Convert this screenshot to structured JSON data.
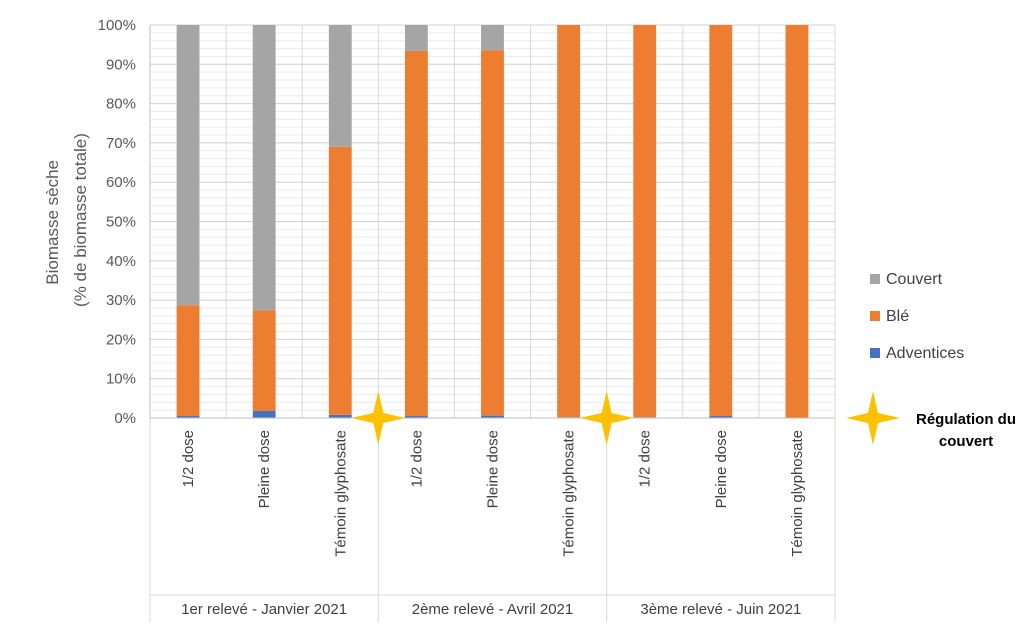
{
  "chart_data": {
    "type": "bar",
    "stacked": true,
    "ylabel": [
      "Biomasse sèche",
      "(% de biomasse totale)"
    ],
    "ylim": [
      0,
      100
    ],
    "y_ticks": [
      "0%",
      "10%",
      "20%",
      "30%",
      "40%",
      "50%",
      "60%",
      "70%",
      "80%",
      "90%",
      "100%"
    ],
    "grid": true,
    "groups": [
      {
        "label": "1er relevé - Janvier 2021",
        "categories": [
          "1/2 dose",
          "Pleine dose",
          "Témoin glyphosate"
        ]
      },
      {
        "label": "2ème relevé - Avril 2021",
        "categories": [
          "1/2 dose",
          "Pleine dose",
          "Témoin glyphosate"
        ]
      },
      {
        "label": "3ème relevé - Juin 2021",
        "categories": [
          "1/2 dose",
          "Pleine dose",
          "Témoin glyphosate"
        ]
      }
    ],
    "series": [
      {
        "name": "Adventices",
        "color": "#4472C4",
        "values": [
          0.5,
          1.8,
          0.8,
          0.5,
          0.6,
          0.2,
          0.2,
          0.5,
          0.1
        ]
      },
      {
        "name": "Blé",
        "color": "#ED7D31",
        "values": [
          28.2,
          25.6,
          68.2,
          92.9,
          93.0,
          99.8,
          99.8,
          99.5,
          99.9
        ]
      },
      {
        "name": "Couvert",
        "color": "#A5A5A5",
        "values": [
          71.3,
          72.6,
          31.0,
          6.6,
          6.4,
          0.0,
          0.0,
          0.0,
          0.0
        ]
      }
    ],
    "legend": {
      "position": "right",
      "order": [
        "Couvert",
        "Blé",
        "Adventices"
      ]
    },
    "annotation": {
      "text": [
        "Régulation du",
        "couvert"
      ],
      "marker": "star-icon",
      "marker_color": "#FFC000",
      "marked_between_groups": [
        [
          1,
          2
        ],
        [
          2,
          3
        ]
      ]
    }
  }
}
